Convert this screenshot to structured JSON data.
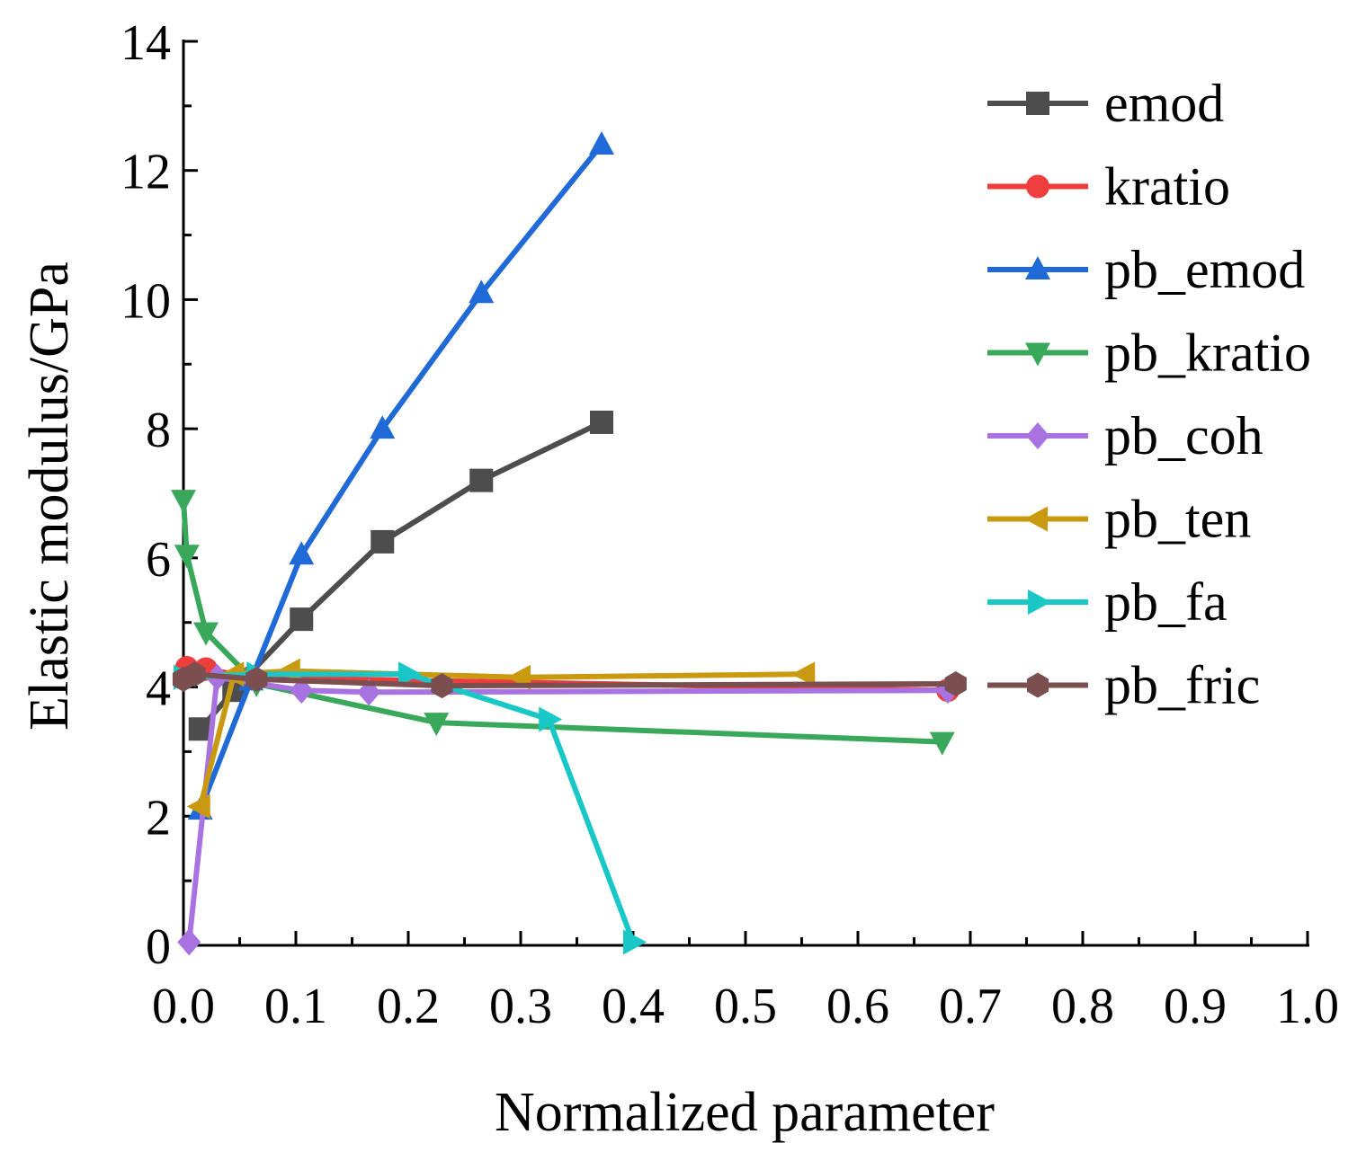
{
  "chart_data": {
    "type": "line",
    "xlabel": "Normalized parameter",
    "ylabel": "Elastic modulus/GPa",
    "xlim": [
      0.0,
      1.0
    ],
    "ylim": [
      0,
      14
    ],
    "x_ticks": [
      "0.0",
      "0.1",
      "0.2",
      "0.3",
      "0.4",
      "0.5",
      "0.6",
      "0.7",
      "0.8",
      "0.9",
      "1.0"
    ],
    "y_ticks": [
      "0",
      "2",
      "4",
      "6",
      "8",
      "10",
      "12",
      "14"
    ],
    "legend_position": "top-right",
    "series": [
      {
        "name": "emod",
        "color": "#4d4d4d",
        "marker": "square",
        "x": [
          0.015,
          0.045,
          0.105,
          0.177,
          0.265,
          0.372
        ],
        "y": [
          3.35,
          3.95,
          5.05,
          6.25,
          7.2,
          8.1
        ]
      },
      {
        "name": "kratio",
        "color": "#ee3d3d",
        "marker": "circle",
        "x": [
          0.003,
          0.02,
          0.06,
          0.68
        ],
        "y": [
          4.3,
          4.28,
          4.15,
          3.95
        ]
      },
      {
        "name": "pb_emod",
        "color": "#1f6ad6",
        "marker": "triangle-up",
        "x": [
          0.015,
          0.06,
          0.105,
          0.177,
          0.265,
          0.372
        ],
        "y": [
          2.1,
          4.1,
          6.05,
          8.0,
          10.1,
          12.4
        ]
      },
      {
        "name": "pb_kratio",
        "color": "#3aa85a",
        "marker": "triangle-down",
        "x": [
          0.0,
          0.003,
          0.02,
          0.065,
          0.225,
          0.675
        ],
        "y": [
          6.9,
          6.05,
          4.85,
          4.05,
          3.45,
          3.15
        ]
      },
      {
        "name": "pb_coh",
        "color": "#a873e0",
        "marker": "diamond",
        "x": [
          0.005,
          0.03,
          0.105,
          0.165,
          0.68
        ],
        "y": [
          0.05,
          4.15,
          3.95,
          3.92,
          3.95
        ]
      },
      {
        "name": "pb_ten",
        "color": "#c99a0f",
        "marker": "triangle-left",
        "x": [
          0.015,
          0.045,
          0.095,
          0.3,
          0.553
        ],
        "y": [
          2.15,
          4.2,
          4.25,
          4.15,
          4.2
        ]
      },
      {
        "name": "pb_fa",
        "color": "#19c7c7",
        "marker": "triangle-right",
        "x": [
          0.0,
          0.065,
          0.2,
          0.325,
          0.4
        ],
        "y": [
          4.15,
          4.2,
          4.2,
          3.5,
          0.05
        ]
      },
      {
        "name": "pb_fric",
        "color": "#7b4f4f",
        "marker": "hexagon",
        "x": [
          0.0,
          0.01,
          0.065,
          0.23,
          0.687
        ],
        "y": [
          4.12,
          4.2,
          4.12,
          4.02,
          4.05
        ]
      }
    ]
  }
}
